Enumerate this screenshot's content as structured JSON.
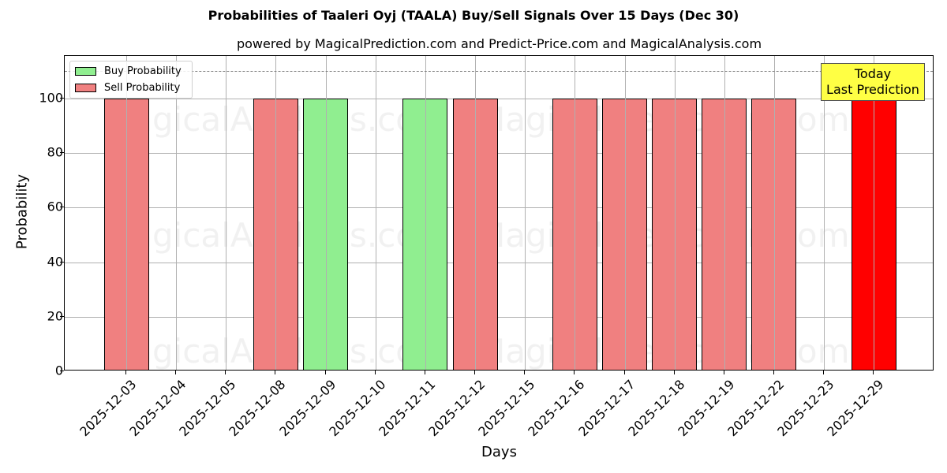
{
  "header": {
    "title": "Probabilities of Taaleri Oyj (TAALA) Buy/Sell Signals Over 15 Days (Dec 30)",
    "subtitle": "powered by MagicalPrediction.com and Predict-Price.com and MagicalAnalysis.com"
  },
  "legend": {
    "buy_label": "Buy Probability",
    "sell_label": "Sell Probability"
  },
  "annotation": {
    "line1": "Today",
    "line2": "Last Prediction"
  },
  "watermarks": [
    "MagicalAnalysis.com",
    "MagicalPrediction.com"
  ],
  "colors": {
    "buy": "#90ee90",
    "sell": "#f08080",
    "today": "#ff0000",
    "annotation_bg": "#ffff44"
  },
  "axes": {
    "xlabel": "Days",
    "ylabel": "Probability",
    "yticks": [
      "0",
      "20",
      "40",
      "60",
      "80",
      "100"
    ]
  },
  "chart_data": {
    "type": "bar",
    "title": "Probabilities of Taaleri Oyj (TAALA) Buy/Sell Signals Over 15 Days (Dec 30)",
    "subtitle": "powered by MagicalPrediction.com and Predict-Price.com and MagicalAnalysis.com",
    "xlabel": "Days",
    "ylabel": "Probability",
    "ylim": [
      0,
      115
    ],
    "reference_line": 110,
    "grid": true,
    "legend_position": "upper left",
    "categories": [
      "2025-12-03",
      "2025-12-04",
      "2025-12-05",
      "2025-12-08",
      "2025-12-09",
      "2025-12-10",
      "2025-12-11",
      "2025-12-12",
      "2025-12-15",
      "2025-12-16",
      "2025-12-17",
      "2025-12-18",
      "2025-12-19",
      "2025-12-22",
      "2025-12-23",
      "2025-12-29"
    ],
    "series": [
      {
        "name": "Buy Probability",
        "values": [
          0,
          0,
          0,
          0,
          100,
          0,
          100,
          0,
          0,
          0,
          0,
          0,
          0,
          0,
          0,
          0
        ]
      },
      {
        "name": "Sell Probability",
        "values": [
          100,
          0,
          0,
          100,
          0,
          0,
          0,
          100,
          0,
          100,
          100,
          100,
          100,
          100,
          0,
          100
        ]
      }
    ],
    "annotations": [
      {
        "text": "Today\nLast Prediction",
        "x": "2025-12-29"
      }
    ]
  }
}
